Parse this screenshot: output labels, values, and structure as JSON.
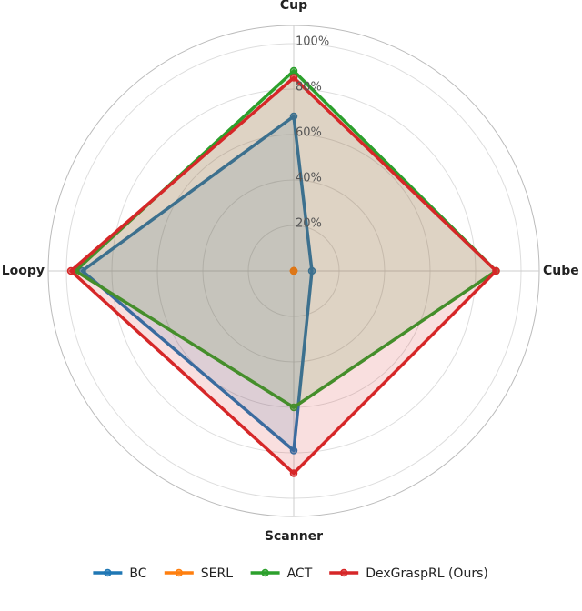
{
  "chart_data": {
    "type": "radar",
    "categories": [
      "Cup",
      "Cube",
      "Scanner",
      "Loopy"
    ],
    "ylim": [
      0,
      108
    ],
    "yticks": [
      {
        "value": 20,
        "label": "20%"
      },
      {
        "value": 40,
        "label": "40%"
      },
      {
        "value": 60,
        "label": "60%"
      },
      {
        "value": 80,
        "label": "80%"
      },
      {
        "value": 100,
        "label": "100%"
      }
    ],
    "grid": true,
    "legend": "bottom",
    "series": [
      {
        "name": "BC",
        "color": "#1f77b4",
        "values": [
          68,
          8,
          79,
          93
        ]
      },
      {
        "name": "SERL",
        "color": "#ff7f0e",
        "values": [
          0,
          0,
          0,
          0
        ]
      },
      {
        "name": "ACT",
        "color": "#2ca02c",
        "values": [
          88,
          89,
          60,
          96
        ]
      },
      {
        "name": "DexGraspRL (Ours)",
        "color": "#d62728",
        "values": [
          85,
          89,
          89,
          98
        ]
      }
    ]
  }
}
